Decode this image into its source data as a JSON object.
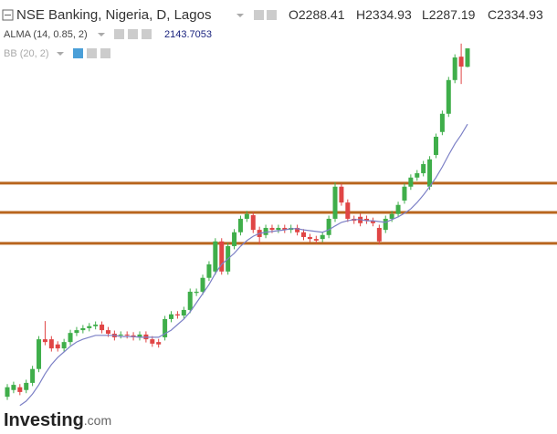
{
  "chart_data": {
    "type": "candlestick",
    "title": "NSE Banking, Nigeria, D, Lagos",
    "ohlc_labels": [
      "O",
      "H",
      "L",
      "C"
    ],
    "ylim": [
      1362,
      2457
    ],
    "up_color": "#3fae4a",
    "down_color": "#e04545",
    "candles": [
      [
        1456,
        1488,
        1448,
        1480
      ],
      [
        1473,
        1494,
        1465,
        1486
      ],
      [
        1480,
        1488,
        1460,
        1468
      ],
      [
        1473,
        1499,
        1465,
        1491
      ],
      [
        1491,
        1534,
        1483,
        1526
      ],
      [
        1526,
        1609,
        1518,
        1601
      ],
      [
        1601,
        1647,
        1586,
        1594
      ],
      [
        1601,
        1609,
        1570,
        1578
      ],
      [
        1588,
        1596,
        1570,
        1578
      ],
      [
        1578,
        1602,
        1570,
        1594
      ],
      [
        1594,
        1625,
        1586,
        1617
      ],
      [
        1617,
        1632,
        1609,
        1624
      ],
      [
        1624,
        1637,
        1616,
        1629
      ],
      [
        1629,
        1642,
        1621,
        1634
      ],
      [
        1634,
        1646,
        1626,
        1638
      ],
      [
        1638,
        1646,
        1616,
        1624
      ],
      [
        1624,
        1632,
        1607,
        1615
      ],
      [
        1615,
        1623,
        1598,
        1606
      ],
      [
        1611,
        1621,
        1603,
        1613
      ],
      [
        1613,
        1621,
        1603,
        1611
      ],
      [
        1611,
        1619,
        1598,
        1606
      ],
      [
        1606,
        1621,
        1598,
        1613
      ],
      [
        1613,
        1621,
        1593,
        1601
      ],
      [
        1601,
        1609,
        1582,
        1590
      ],
      [
        1594,
        1602,
        1580,
        1588
      ],
      [
        1606,
        1660,
        1598,
        1652
      ],
      [
        1652,
        1672,
        1644,
        1664
      ],
      [
        1664,
        1672,
        1653,
        1661
      ],
      [
        1661,
        1683,
        1653,
        1675
      ],
      [
        1675,
        1729,
        1667,
        1721
      ],
      [
        1718,
        1729,
        1710,
        1721
      ],
      [
        1721,
        1764,
        1713,
        1756
      ],
      [
        1756,
        1798,
        1748,
        1790
      ],
      [
        1772,
        1856,
        1764,
        1848
      ],
      [
        1848,
        1856,
        1764,
        1772
      ],
      [
        1772,
        1844,
        1764,
        1836
      ],
      [
        1836,
        1879,
        1828,
        1871
      ],
      [
        1871,
        1913,
        1863,
        1905
      ],
      [
        1905,
        1925,
        1897,
        1917
      ],
      [
        1914,
        1922,
        1869,
        1877
      ],
      [
        1877,
        1885,
        1840,
        1859
      ],
      [
        1864,
        1890,
        1856,
        1882
      ],
      [
        1882,
        1890,
        1869,
        1877
      ],
      [
        1877,
        1890,
        1869,
        1882
      ],
      [
        1882,
        1890,
        1869,
        1877
      ],
      [
        1877,
        1890,
        1869,
        1882
      ],
      [
        1882,
        1890,
        1863,
        1871
      ],
      [
        1871,
        1879,
        1851,
        1859
      ],
      [
        1859,
        1867,
        1846,
        1854
      ],
      [
        1854,
        1862,
        1842,
        1850
      ],
      [
        1854,
        1872,
        1846,
        1864
      ],
      [
        1864,
        1913,
        1856,
        1905
      ],
      [
        1905,
        1997,
        1897,
        1986
      ],
      [
        1986,
        1994,
        1938,
        1946
      ],
      [
        1946,
        1954,
        1897,
        1905
      ],
      [
        1905,
        1913,
        1892,
        1900
      ],
      [
        1910,
        1918,
        1886,
        1894
      ],
      [
        1905,
        1913,
        1892,
        1900
      ],
      [
        1900,
        1908,
        1886,
        1894
      ],
      [
        1882,
        1890,
        1840,
        1848
      ],
      [
        1877,
        1913,
        1869,
        1905
      ],
      [
        1905,
        1925,
        1897,
        1917
      ],
      [
        1917,
        1948,
        1909,
        1940
      ],
      [
        1951,
        1994,
        1943,
        1986
      ],
      [
        1986,
        2017,
        1978,
        2009
      ],
      [
        2009,
        2028,
        2001,
        2020
      ],
      [
        2020,
        2051,
        2012,
        2043
      ],
      [
        1986,
        2063,
        1978,
        2055
      ],
      [
        2066,
        2120,
        2058,
        2112
      ],
      [
        2124,
        2178,
        2116,
        2170
      ],
      [
        2170,
        2263,
        2162,
        2255
      ],
      [
        2255,
        2320,
        2247,
        2312
      ],
      [
        2314,
        2347,
        2245,
        2289
      ],
      [
        2288.41,
        2334.93,
        2287.19,
        2334.93
      ]
    ],
    "indicators": [
      {
        "name": "ALMA (14, 0.85, 2)",
        "color": "#7c80c6",
        "values": [
          null,
          null,
          1434,
          1445,
          1463,
          1486,
          1514,
          1537,
          1555,
          1569,
          1583,
          1594,
          1601,
          1606,
          1611,
          1611,
          1611,
          1611,
          1608,
          1608,
          1608,
          1606,
          1606,
          1606,
          1606,
          1615,
          1624,
          1638,
          1652,
          1670,
          1693,
          1716,
          1739,
          1767,
          1790,
          1804,
          1818,
          1836,
          1850,
          1861,
          1868,
          1871,
          1873,
          1875,
          1877,
          1880,
          1880,
          1877,
          1875,
          1873,
          1871,
          1877,
          1887,
          1896,
          1900,
          1903,
          1903,
          1900,
          1900,
          1898,
          1896,
          1903,
          1910,
          1919,
          1930,
          1946,
          1965,
          1986,
          2009,
          2036,
          2066,
          2094,
          2117,
          2143.7053
        ]
      },
      {
        "name": "BB (20, 2)"
      }
    ],
    "levels": [
      {
        "value": 1995,
        "color": "#b8651e"
      },
      {
        "value": 1921,
        "color": "#b8651e"
      },
      {
        "value": 1843,
        "color": "#b8651e"
      }
    ],
    "logo": [
      "Investing",
      ".com"
    ]
  }
}
